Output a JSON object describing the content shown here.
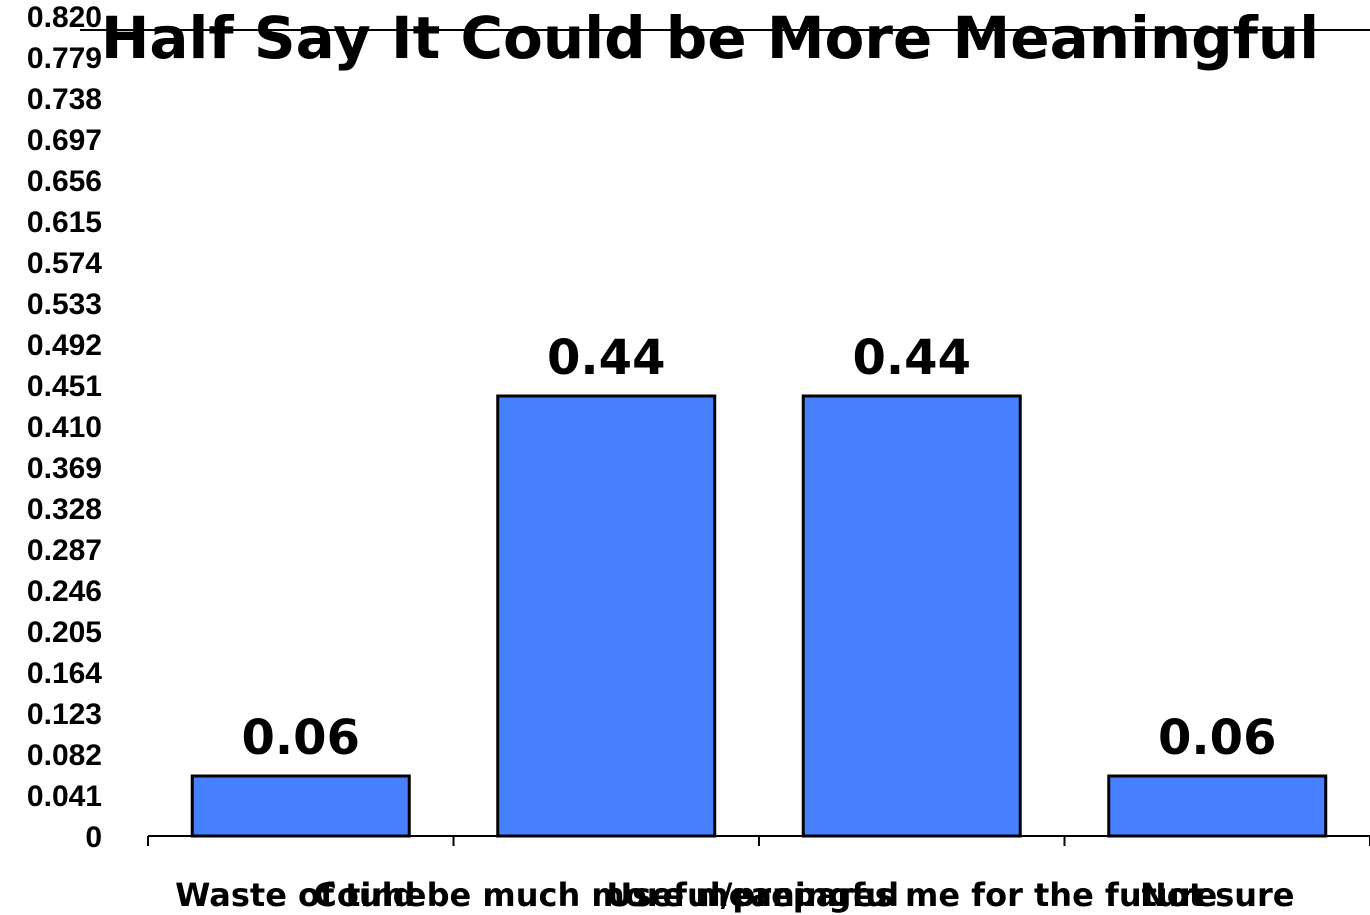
{
  "chart_data": {
    "type": "bar",
    "title": "Half Say It Could be More Meaningful",
    "categories": [
      "Waste of time",
      "Could be much more meaningful",
      "Useful/prepares me for the future",
      "Not sure"
    ],
    "values": [
      0.06,
      0.44,
      0.44,
      0.06
    ],
    "data_labels": [
      "0.06",
      "0.44",
      "0.44",
      "0.06"
    ],
    "y_ticks": [
      "0",
      "0.041",
      "0.082",
      "0.123",
      "0.164",
      "0.205",
      "0.246",
      "0.287",
      "0.328",
      "0.369",
      "0.410",
      "0.451",
      "0.492",
      "0.533",
      "0.574",
      "0.615",
      "0.656",
      "0.697",
      "0.738",
      "0.779",
      "0.820"
    ],
    "ylim": [
      0,
      0.82
    ],
    "xlabel": "",
    "ylabel": "",
    "grid": false,
    "legend": "none",
    "bar_color": "#4680FF",
    "bar_edge_color": "#000000"
  }
}
